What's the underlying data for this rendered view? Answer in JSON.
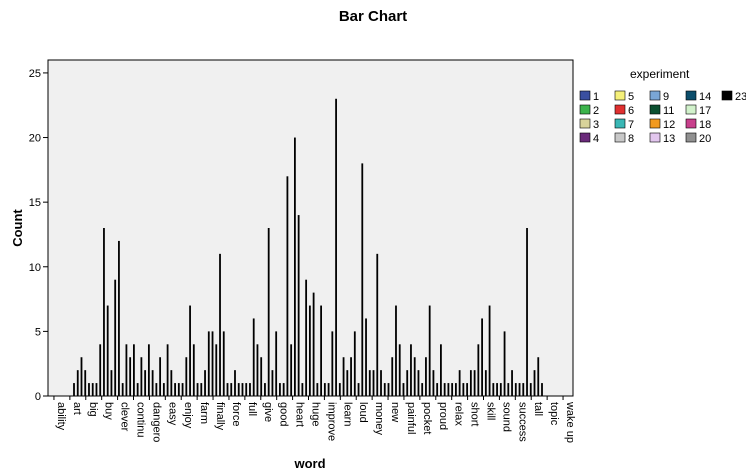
{
  "title": "Bar Chart",
  "legend": {
    "title": "experiment",
    "entries": [
      {
        "label": "1",
        "color": "#3a4fa0"
      },
      {
        "label": "2",
        "color": "#3cb44b"
      },
      {
        "label": "3",
        "color": "#d8d39a"
      },
      {
        "label": "4",
        "color": "#6a2a7a"
      },
      {
        "label": "5",
        "color": "#f5f07a"
      },
      {
        "label": "6",
        "color": "#e03030"
      },
      {
        "label": "7",
        "color": "#3ab7b5"
      },
      {
        "label": "8",
        "color": "#c8c8c8"
      },
      {
        "label": "9",
        "color": "#7aa6d6"
      },
      {
        "label": "11",
        "color": "#0b5030"
      },
      {
        "label": "12",
        "color": "#f29a20"
      },
      {
        "label": "13",
        "color": "#e2c6ee"
      },
      {
        "label": "14",
        "color": "#0c4d6b"
      },
      {
        "label": "17",
        "color": "#d2f2cc"
      },
      {
        "label": "18",
        "color": "#c8408c"
      },
      {
        "label": "20",
        "color": "#909090"
      },
      {
        "label": "23",
        "color": "#000000"
      }
    ]
  },
  "chart_data": {
    "type": "bar",
    "title": "Bar Chart",
    "xlabel": "word",
    "ylabel": "Count",
    "ylim": [
      0,
      26
    ],
    "yticks": [
      0,
      5,
      10,
      15,
      20,
      25
    ],
    "grid": false,
    "legend_position": "right",
    "categories": [
      "ability",
      "art",
      "big",
      "buy",
      "clever",
      "continu",
      "dangero",
      "easy",
      "enjoy",
      "farm",
      "finally",
      "force",
      "full",
      "give",
      "good",
      "heart",
      "huge",
      "improve",
      "learn",
      "loud",
      "money",
      "new",
      "painful",
      "pocket",
      "proud",
      "relax",
      "short",
      "skill",
      "sound",
      "success",
      "tall",
      "topic",
      "wake up"
    ],
    "bar_values_in_order": [
      1,
      2,
      3,
      2,
      1,
      1,
      1,
      4,
      13,
      7,
      2,
      9,
      12,
      1,
      4,
      3,
      4,
      1,
      3,
      2,
      4,
      2,
      1,
      3,
      1,
      4,
      2,
      1,
      1,
      1,
      3,
      7,
      4,
      1,
      1,
      2,
      5,
      5,
      4,
      11,
      5,
      1,
      1,
      2,
      1,
      1,
      1,
      1,
      6,
      4,
      3,
      1,
      13,
      2,
      5,
      1,
      1,
      17,
      4,
      20,
      14,
      1,
      9,
      7,
      8,
      1,
      7,
      1,
      1,
      5,
      23,
      1,
      3,
      2,
      3,
      5,
      1,
      18,
      6,
      2,
      2,
      11,
      2,
      1,
      1,
      3,
      7,
      4,
      1,
      2,
      4,
      3,
      2,
      1,
      3,
      7,
      2,
      1,
      4,
      1,
      1,
      1,
      1,
      2,
      1,
      1,
      2,
      2,
      4,
      6,
      2,
      7,
      1,
      1,
      1,
      5,
      1,
      2,
      1,
      1,
      1,
      13,
      1,
      2,
      3,
      1
    ]
  }
}
